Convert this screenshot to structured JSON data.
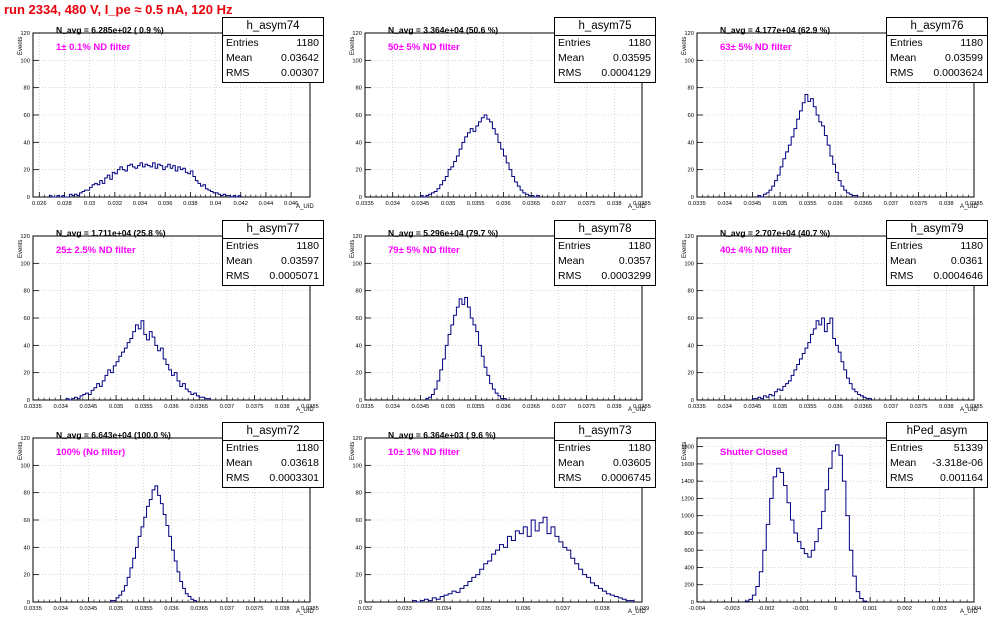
{
  "page_title": "run 2334,   480 V, I_pe ≈ 0.5 nA, 120 Hz",
  "colors": {
    "title": "#e8000b",
    "histogram": "#000080",
    "grid": "#b8b8b8",
    "annotation": "#ff00ff"
  },
  "chart_data": [
    {
      "type": "histogram",
      "name": "h_asym74",
      "stats": {
        "entries_label": "Entries",
        "entries": "1180",
        "mean_label": "Mean",
        "mean": "0.03642",
        "rms_label": "RMS",
        "rms": "0.00307"
      },
      "n_avg_text": "N_avg = 6.285e+02 ( 0.9 %)",
      "filter_text": "1± 0.1% ND filter",
      "xlabel": "A_UID",
      "ylabel": "Events",
      "xlim": [
        0.0255,
        0.0475
      ],
      "ylim": [
        0,
        120
      ],
      "x_ticks": [
        0.026,
        0.028,
        0.03,
        0.032,
        0.034,
        0.036,
        0.038,
        0.04,
        0.042,
        0.044,
        0.046
      ],
      "x_tick_labels": [
        "0.026",
        "0.028",
        "0.03",
        "0.032",
        "0.034",
        "0.036",
        "0.038",
        "0.04",
        "0.042",
        "0.044",
        "0.046"
      ],
      "y_ticks": [
        0,
        20,
        40,
        60,
        80,
        100,
        120
      ],
      "bin_start": 0.0268,
      "bin_width": 0.0002,
      "counts": [
        1,
        0,
        0,
        1,
        0,
        1,
        0,
        0,
        2,
        1,
        2,
        1,
        3,
        4,
        5,
        5,
        7,
        9,
        10,
        9,
        12,
        10,
        14,
        16,
        13,
        18,
        17,
        20,
        22,
        20,
        19,
        23,
        24,
        22,
        21,
        23,
        25,
        22,
        24,
        23,
        22,
        25,
        21,
        24,
        23,
        20,
        22,
        24,
        21,
        23,
        19,
        22,
        20,
        21,
        18,
        17,
        19,
        15,
        12,
        10,
        8,
        9,
        6,
        5,
        4,
        3,
        3,
        2,
        1,
        2,
        1,
        1,
        0,
        1,
        0,
        1
      ]
    },
    {
      "type": "histogram",
      "name": "h_asym75",
      "stats": {
        "entries_label": "Entries",
        "entries": "1180",
        "mean_label": "Mean",
        "mean": "0.03595",
        "rms_label": "RMS",
        "rms": "0.0004129"
      },
      "n_avg_text": "N_avg = 3.364e+04 (50.6 %)",
      "filter_text": "50± 5% ND filter",
      "xlabel": "A_UID",
      "ylabel": "Events",
      "xlim": [
        0.0335,
        0.0385
      ],
      "ylim": [
        0,
        120
      ],
      "x_ticks": [
        0.0335,
        0.034,
        0.0345,
        0.035,
        0.0355,
        0.036,
        0.0365,
        0.037,
        0.0375,
        0.038,
        0.0385
      ],
      "x_tick_labels": [
        "0.0335",
        "0.034",
        "0.0345",
        "0.035",
        "0.0355",
        "0.036",
        "0.0365",
        "0.037",
        "0.0375",
        "0.038",
        "0.0385"
      ],
      "y_ticks": [
        0,
        20,
        40,
        60,
        80,
        100,
        120
      ],
      "bin_start": 0.0345,
      "bin_width": 5e-05,
      "counts": [
        1,
        0,
        1,
        2,
        3,
        4,
        6,
        9,
        12,
        15,
        20,
        22,
        26,
        30,
        35,
        40,
        44,
        47,
        50,
        48,
        52,
        55,
        58,
        60,
        57,
        55,
        50,
        46,
        40,
        35,
        30,
        25,
        20,
        15,
        11,
        8,
        5,
        3,
        2,
        1,
        1,
        0,
        1
      ]
    },
    {
      "type": "histogram",
      "name": "h_asym76",
      "stats": {
        "entries_label": "Entries",
        "entries": "1180",
        "mean_label": "Mean",
        "mean": "0.03599",
        "rms_label": "RMS",
        "rms": "0.0003624"
      },
      "n_avg_text": "N_avg = 4.177e+04 (62.9 %)",
      "filter_text": "63± 5% ND filter",
      "xlabel": "A_UID",
      "ylabel": "Events",
      "xlim": [
        0.0335,
        0.0385
      ],
      "ylim": [
        0,
        120
      ],
      "x_ticks": [
        0.0335,
        0.034,
        0.0345,
        0.035,
        0.0355,
        0.036,
        0.0365,
        0.037,
        0.0375,
        0.038,
        0.0385
      ],
      "x_tick_labels": [
        "0.0335",
        "0.034",
        "0.0345",
        "0.035",
        "0.0355",
        "0.036",
        "0.0365",
        "0.037",
        "0.0375",
        "0.038",
        "0.0385"
      ],
      "y_ticks": [
        0,
        20,
        40,
        60,
        80,
        100,
        120
      ],
      "bin_start": 0.0346,
      "bin_width": 5e-05,
      "counts": [
        1,
        0,
        2,
        3,
        5,
        8,
        12,
        16,
        22,
        28,
        33,
        38,
        44,
        50,
        57,
        63,
        69,
        75,
        70,
        72,
        66,
        60,
        55,
        52,
        45,
        38,
        30,
        24,
        18,
        12,
        8,
        5,
        3,
        2,
        1,
        1
      ]
    },
    {
      "type": "histogram",
      "name": "h_asym77",
      "stats": {
        "entries_label": "Entries",
        "entries": "1180",
        "mean_label": "Mean",
        "mean": "0.03597",
        "rms_label": "RMS",
        "rms": "0.0005071"
      },
      "n_avg_text": "N_avg = 1.711e+04 (25.8 %)",
      "filter_text": "25± 2.5% ND filter",
      "xlabel": "A_UID",
      "ylabel": "Events",
      "xlim": [
        0.0335,
        0.0385
      ],
      "ylim": [
        0,
        120
      ],
      "x_ticks": [
        0.0335,
        0.034,
        0.0345,
        0.035,
        0.0355,
        0.036,
        0.0365,
        0.037,
        0.0375,
        0.038,
        0.0385
      ],
      "x_tick_labels": [
        "0.0335",
        "0.034",
        "0.0345",
        "0.035",
        "0.0355",
        "0.036",
        "0.0365",
        "0.037",
        "0.0375",
        "0.038",
        "0.0385"
      ],
      "y_ticks": [
        0,
        20,
        40,
        60,
        80,
        100,
        120
      ],
      "bin_start": 0.0341,
      "bin_width": 5e-05,
      "counts": [
        1,
        0,
        1,
        2,
        1,
        3,
        4,
        5,
        4,
        7,
        9,
        12,
        10,
        14,
        18,
        22,
        20,
        25,
        28,
        32,
        35,
        38,
        42,
        45,
        50,
        55,
        52,
        58,
        48,
        44,
        50,
        46,
        40,
        36,
        38,
        30,
        26,
        22,
        18,
        20,
        14,
        10,
        12,
        8,
        6,
        4,
        5,
        3,
        2,
        2,
        1,
        1
      ]
    },
    {
      "type": "histogram",
      "name": "h_asym78",
      "stats": {
        "entries_label": "Entries",
        "entries": "1180",
        "mean_label": "Mean",
        "mean": "0.0357",
        "rms_label": "RMS",
        "rms": "0.0003299"
      },
      "n_avg_text": "N_avg = 5.296e+04 (79.7 %)",
      "filter_text": "79± 5% ND filter",
      "xlabel": "A_UID",
      "ylabel": "Events",
      "xlim": [
        0.0335,
        0.0385
      ],
      "ylim": [
        0,
        120
      ],
      "x_ticks": [
        0.0335,
        0.034,
        0.0345,
        0.035,
        0.0355,
        0.036,
        0.0365,
        0.037,
        0.0375,
        0.038,
        0.0385
      ],
      "x_tick_labels": [
        "0.0335",
        "0.034",
        "0.0345",
        "0.035",
        "0.0355",
        "0.036",
        "0.0365",
        "0.037",
        "0.0375",
        "0.038",
        "0.0385"
      ],
      "y_ticks": [
        0,
        20,
        40,
        60,
        80,
        100,
        120
      ],
      "bin_start": 0.0346,
      "bin_width": 5e-05,
      "counts": [
        1,
        2,
        4,
        8,
        14,
        22,
        30,
        40,
        48,
        55,
        62,
        68,
        74,
        70,
        75,
        68,
        60,
        55,
        50,
        40,
        32,
        24,
        18,
        12,
        8,
        5,
        3,
        1,
        1
      ]
    },
    {
      "type": "histogram",
      "name": "h_asym79",
      "stats": {
        "entries_label": "Entries",
        "entries": "1180",
        "mean_label": "Mean",
        "mean": "0.0361",
        "rms_label": "RMS",
        "rms": "0.0004646"
      },
      "n_avg_text": "N_avg = 2.707e+04 (40.7 %)",
      "filter_text": "40± 4% ND filter",
      "xlabel": "A_UID",
      "ylabel": "Events",
      "xlim": [
        0.0335,
        0.0385
      ],
      "ylim": [
        0,
        120
      ],
      "x_ticks": [
        0.0335,
        0.034,
        0.0345,
        0.035,
        0.0355,
        0.036,
        0.0365,
        0.037,
        0.0375,
        0.038,
        0.0385
      ],
      "x_tick_labels": [
        "0.0335",
        "0.034",
        "0.0345",
        "0.035",
        "0.0355",
        "0.036",
        "0.0365",
        "0.037",
        "0.0375",
        "0.038",
        "0.0385"
      ],
      "y_ticks": [
        0,
        20,
        40,
        60,
        80,
        100,
        120
      ],
      "bin_start": 0.0345,
      "bin_width": 5e-05,
      "counts": [
        1,
        1,
        2,
        1,
        3,
        2,
        4,
        3,
        6,
        8,
        7,
        10,
        12,
        14,
        18,
        22,
        26,
        30,
        34,
        38,
        42,
        48,
        52,
        58,
        55,
        60,
        50,
        56,
        60,
        45,
        40,
        35,
        28,
        22,
        16,
        12,
        8,
        6,
        4,
        3,
        2,
        1,
        1
      ]
    },
    {
      "type": "histogram",
      "name": "h_asym72",
      "stats": {
        "entries_label": "Entries",
        "entries": "1180",
        "mean_label": "Mean",
        "mean": "0.03618",
        "rms_label": "RMS",
        "rms": "0.0003301"
      },
      "n_avg_text": "N_avg = 6.643e+04 (100.0 %)",
      "filter_text": "100% (No filter)",
      "xlabel": "A_UID",
      "ylabel": "Events",
      "xlim": [
        0.0335,
        0.0385
      ],
      "ylim": [
        0,
        120
      ],
      "x_ticks": [
        0.0335,
        0.034,
        0.0345,
        0.035,
        0.0355,
        0.036,
        0.0365,
        0.037,
        0.0375,
        0.038,
        0.0385
      ],
      "x_tick_labels": [
        "0.0335",
        "0.034",
        "0.0345",
        "0.035",
        "0.0355",
        "0.036",
        "0.0365",
        "0.037",
        "0.0375",
        "0.038",
        "0.0385"
      ],
      "y_ticks": [
        0,
        20,
        40,
        60,
        80,
        100,
        120
      ],
      "bin_start": 0.0349,
      "bin_width": 5e-05,
      "counts": [
        1,
        1,
        3,
        5,
        8,
        12,
        18,
        25,
        32,
        40,
        48,
        55,
        62,
        70,
        75,
        82,
        85,
        78,
        72,
        64,
        56,
        48,
        38,
        30,
        22,
        15,
        10,
        6,
        4,
        2,
        1
      ]
    },
    {
      "type": "histogram",
      "name": "h_asym73",
      "stats": {
        "entries_label": "Entries",
        "entries": "1180",
        "mean_label": "Mean",
        "mean": "0.03605",
        "rms_label": "RMS",
        "rms": "0.0006745"
      },
      "n_avg_text": "N_avg = 6.364e+03 ( 9.6 %)",
      "filter_text": "10± 1% ND filter",
      "xlabel": "A_UID",
      "ylabel": "Events",
      "xlim": [
        0.032,
        0.039
      ],
      "ylim": [
        0,
        120
      ],
      "x_ticks": [
        0.032,
        0.033,
        0.034,
        0.035,
        0.036,
        0.037,
        0.038,
        0.039
      ],
      "x_tick_labels": [
        "0.032",
        "0.033",
        "0.034",
        "0.035",
        "0.036",
        "0.037",
        "0.038",
        "0.039"
      ],
      "y_ticks": [
        0,
        20,
        40,
        60,
        80,
        100,
        120
      ],
      "bin_start": 0.0332,
      "bin_width": 0.0001,
      "counts": [
        1,
        0,
        1,
        2,
        1,
        3,
        2,
        4,
        5,
        6,
        8,
        7,
        10,
        12,
        15,
        18,
        20,
        24,
        28,
        30,
        35,
        38,
        42,
        40,
        48,
        45,
        52,
        50,
        55,
        48,
        60,
        52,
        58,
        62,
        50,
        55,
        48,
        44,
        40,
        38,
        32,
        28,
        24,
        20,
        18,
        14,
        12,
        10,
        8,
        6,
        5,
        4,
        3,
        2,
        1,
        1
      ]
    },
    {
      "type": "histogram",
      "name": "hPed_asym",
      "stats": {
        "entries_label": "Entries",
        "entries": "51339",
        "mean_label": "Mean",
        "mean": "-3.318e-06",
        "rms_label": "RMS",
        "rms": "0.001164"
      },
      "n_avg_text": "",
      "filter_text": "Shutter Closed",
      "xlabel": "A_UID",
      "ylabel": "Events",
      "xlim": [
        -0.004,
        0.004
      ],
      "ylim": [
        0,
        1900
      ],
      "x_ticks": [
        -0.004,
        -0.003,
        -0.002,
        -0.001,
        0,
        0.001,
        0.002,
        0.003,
        0.004
      ],
      "x_tick_labels": [
        "-0.004",
        "-0.003",
        "-0.002",
        "-0.001",
        "0",
        "0.001",
        "0.002",
        "0.003",
        "0.004"
      ],
      "y_ticks": [
        0,
        200,
        400,
        600,
        800,
        1000,
        1200,
        1400,
        1600,
        1800
      ],
      "bin_start": -0.0026,
      "bin_width": 0.0001,
      "counts": [
        10,
        30,
        80,
        180,
        350,
        600,
        900,
        1200,
        1450,
        1550,
        1500,
        1350,
        1150,
        950,
        800,
        700,
        620,
        560,
        520,
        600,
        700,
        850,
        1050,
        1300,
        1550,
        1750,
        1820,
        1700,
        1400,
        1000,
        600,
        300,
        120,
        40,
        10
      ]
    }
  ]
}
